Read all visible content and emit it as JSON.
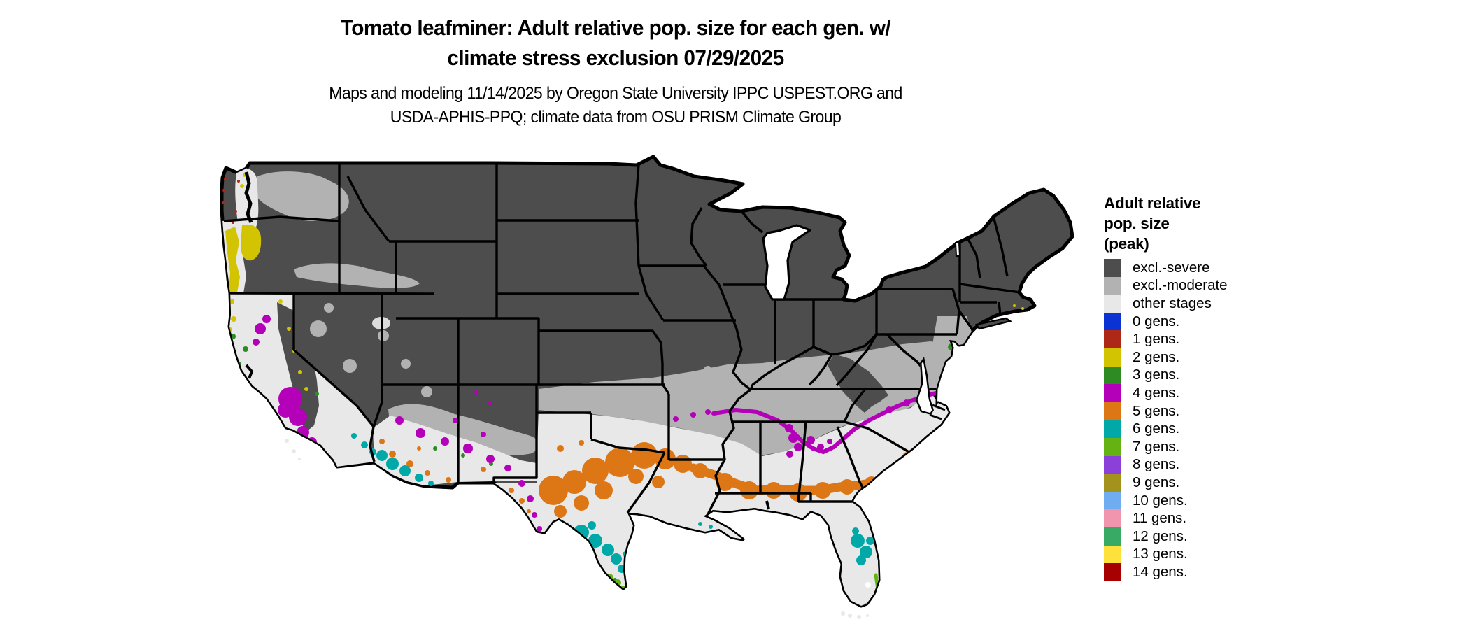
{
  "title": {
    "line1": "Tomato leafminer: Adult relative pop. size for each gen. w/",
    "line2": "climate stress exclusion 07/29/2025"
  },
  "subtitle": {
    "line1": "Maps and modeling 11/14/2025 by Oregon State University IPPC USPEST.ORG and",
    "line2": "USDA-APHIS-PPQ; climate data from OSU PRISM Climate Group"
  },
  "legend": {
    "title_lines": [
      "Adult relative",
      "pop. size",
      "(peak)"
    ],
    "items": [
      {
        "key": "excl_severe",
        "label": "excl.-severe",
        "color": "#4d4d4d"
      },
      {
        "key": "excl_moderate",
        "label": "excl.-moderate",
        "color": "#b2b2b2"
      },
      {
        "key": "other_stages",
        "label": "other stages",
        "color": "#e8e8e8"
      },
      {
        "key": "g0",
        "label": "0 gens.",
        "color": "#0b32d3"
      },
      {
        "key": "g1",
        "label": "1 gens.",
        "color": "#ae2817"
      },
      {
        "key": "g2",
        "label": "2 gens.",
        "color": "#d2c400"
      },
      {
        "key": "g3",
        "label": "3 gens.",
        "color": "#2e8b24"
      },
      {
        "key": "g4",
        "label": "4 gens.",
        "color": "#b400b8"
      },
      {
        "key": "g5",
        "label": "5 gens.",
        "color": "#dd7615"
      },
      {
        "key": "g6",
        "label": "6 gens.",
        "color": "#00a8a8"
      },
      {
        "key": "g7",
        "label": "7 gens.",
        "color": "#64b312"
      },
      {
        "key": "g8",
        "label": "8 gens.",
        "color": "#8b40d9"
      },
      {
        "key": "g9",
        "label": "9 gens.",
        "color": "#a3931c"
      },
      {
        "key": "g10",
        "label": "10 gens.",
        "color": "#70adf0"
      },
      {
        "key": "g11",
        "label": "11 gens.",
        "color": "#f095ad"
      },
      {
        "key": "g12",
        "label": "12 gens.",
        "color": "#39a966"
      },
      {
        "key": "g13",
        "label": "13 gens.",
        "color": "#ffe13c"
      },
      {
        "key": "g14",
        "label": "14 gens.",
        "color": "#a60000"
      }
    ]
  },
  "map": {
    "region_shown": "conterminous United States choropleth",
    "background_color": "#ffffff",
    "border_color": "#000000",
    "water_color": "#000000"
  }
}
